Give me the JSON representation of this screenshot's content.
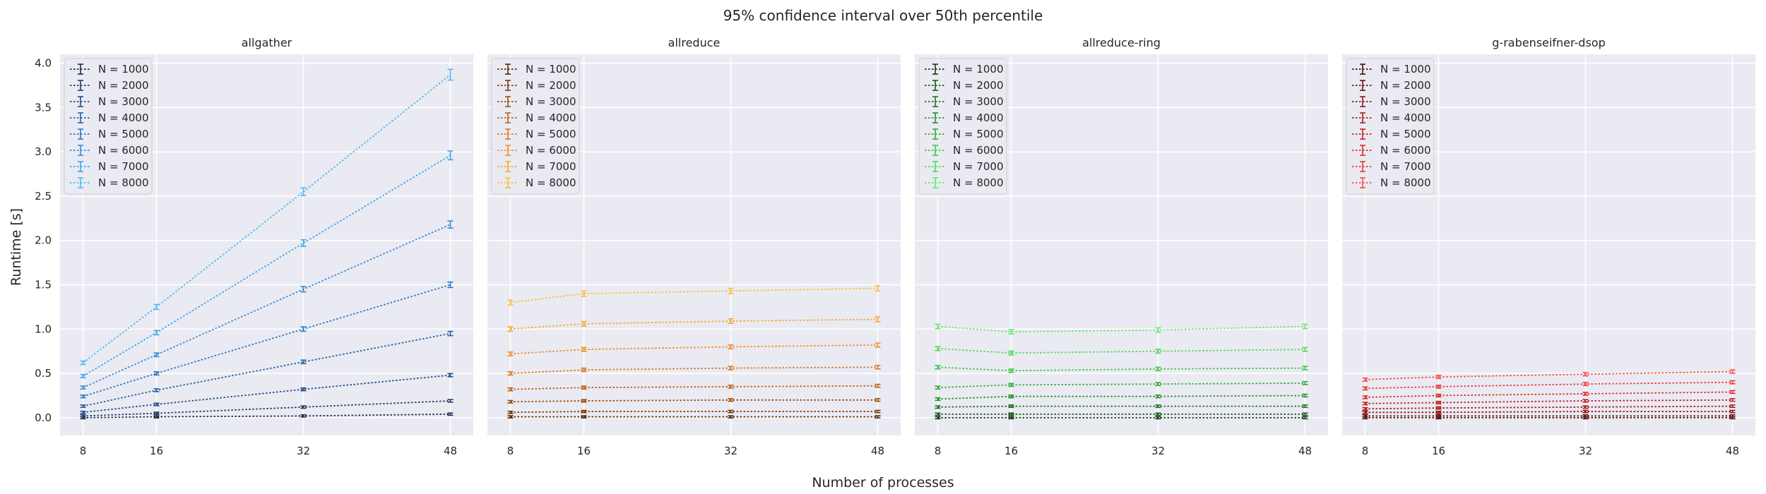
{
  "chart_data": {
    "type": "line",
    "suptitle": "95% confidence interval over 50th percentile",
    "xlabel": "Number of processes",
    "ylabel": "Runtime [s]",
    "x": [
      8,
      16,
      32,
      48
    ],
    "x_ticks": [
      "8",
      "16",
      "32",
      "48"
    ],
    "y_ticks": [
      "0.0",
      "0.5",
      "1.0",
      "1.5",
      "2.0",
      "2.5",
      "3.0",
      "3.5",
      "4.0"
    ],
    "ylim": [
      -0.2,
      4.1
    ],
    "grid": true,
    "shared_y": true,
    "legend_position": "top-left",
    "line_style": "dotted",
    "error_bars": true,
    "panels": [
      {
        "title": "allgather",
        "series": [
          {
            "name": "N = 1000",
            "values": [
              0.0,
              0.01,
              0.02,
              0.04
            ],
            "color": "#1c2b48"
          },
          {
            "name": "N = 2000",
            "values": [
              0.02,
              0.05,
              0.12,
              0.19
            ],
            "color": "#1f3c66"
          },
          {
            "name": "N = 3000",
            "values": [
              0.06,
              0.15,
              0.32,
              0.48
            ],
            "color": "#214f87"
          },
          {
            "name": "N = 4000",
            "values": [
              0.13,
              0.31,
              0.63,
              0.95
            ],
            "color": "#2463a6"
          },
          {
            "name": "N = 5000",
            "values": [
              0.24,
              0.5,
              1.0,
              1.5
            ],
            "color": "#2a78c4"
          },
          {
            "name": "N = 6000",
            "values": [
              0.34,
              0.71,
              1.45,
              2.18
            ],
            "color": "#328ed9"
          },
          {
            "name": "N = 7000",
            "values": [
              0.47,
              0.96,
              1.97,
              2.96
            ],
            "color": "#3ea5e8"
          },
          {
            "name": "N = 8000",
            "values": [
              0.62,
              1.25,
              2.55,
              3.87
            ],
            "color": "#4dbaf2"
          }
        ]
      },
      {
        "title": "allreduce",
        "series": [
          {
            "name": "N = 1000",
            "values": [
              0.01,
              0.01,
              0.01,
              0.01
            ],
            "color": "#5a2a0a"
          },
          {
            "name": "N = 2000",
            "values": [
              0.06,
              0.07,
              0.07,
              0.07
            ],
            "color": "#7a3c0d"
          },
          {
            "name": "N = 3000",
            "values": [
              0.18,
              0.19,
              0.2,
              0.2
            ],
            "color": "#9b4f11"
          },
          {
            "name": "N = 4000",
            "values": [
              0.32,
              0.34,
              0.35,
              0.36
            ],
            "color": "#bb6315"
          },
          {
            "name": "N = 5000",
            "values": [
              0.5,
              0.54,
              0.56,
              0.57
            ],
            "color": "#d97a1a"
          },
          {
            "name": "N = 6000",
            "values": [
              0.72,
              0.77,
              0.8,
              0.82
            ],
            "color": "#ef9023"
          },
          {
            "name": "N = 7000",
            "values": [
              1.0,
              1.06,
              1.09,
              1.11
            ],
            "color": "#f8a52d"
          },
          {
            "name": "N = 8000",
            "values": [
              1.3,
              1.4,
              1.43,
              1.46
            ],
            "color": "#fbbd3c"
          }
        ]
      },
      {
        "title": "allreduce-ring",
        "series": [
          {
            "name": "N = 1000",
            "values": [
              0.0,
              0.0,
              0.0,
              0.0
            ],
            "color": "#143d14"
          },
          {
            "name": "N = 2000",
            "values": [
              0.04,
              0.04,
              0.04,
              0.04
            ],
            "color": "#1a5a1c"
          },
          {
            "name": "N = 3000",
            "values": [
              0.12,
              0.13,
              0.13,
              0.13
            ],
            "color": "#1f7723"
          },
          {
            "name": "N = 4000",
            "values": [
              0.21,
              0.24,
              0.24,
              0.25
            ],
            "color": "#25942b"
          },
          {
            "name": "N = 5000",
            "values": [
              0.34,
              0.37,
              0.38,
              0.39
            ],
            "color": "#2eb036"
          },
          {
            "name": "N = 6000",
            "values": [
              0.57,
              0.53,
              0.55,
              0.56
            ],
            "color": "#3bc845"
          },
          {
            "name": "N = 7000",
            "values": [
              0.78,
              0.73,
              0.75,
              0.77
            ],
            "color": "#4ddb57"
          },
          {
            "name": "N = 8000",
            "values": [
              1.03,
              0.97,
              0.99,
              1.03
            ],
            "color": "#63ea6b"
          }
        ]
      },
      {
        "title": "g-rabenseifner-dsop",
        "series": [
          {
            "name": "N = 1000",
            "values": [
              0.0,
              0.0,
              0.0,
              0.0
            ],
            "color": "#4a0d0d"
          },
          {
            "name": "N = 2000",
            "values": [
              0.02,
              0.02,
              0.02,
              0.02
            ],
            "color": "#6b1212"
          },
          {
            "name": "N = 3000",
            "values": [
              0.06,
              0.06,
              0.07,
              0.07
            ],
            "color": "#8c1717"
          },
          {
            "name": "N = 4000",
            "values": [
              0.1,
              0.11,
              0.12,
              0.13
            ],
            "color": "#ad1c1c"
          },
          {
            "name": "N = 5000",
            "values": [
              0.16,
              0.17,
              0.19,
              0.2
            ],
            "color": "#c92222"
          },
          {
            "name": "N = 6000",
            "values": [
              0.23,
              0.25,
              0.27,
              0.29
            ],
            "color": "#e02b2b"
          },
          {
            "name": "N = 7000",
            "values": [
              0.33,
              0.35,
              0.38,
              0.4
            ],
            "color": "#ef3838"
          },
          {
            "name": "N = 8000",
            "values": [
              0.43,
              0.46,
              0.49,
              0.52
            ],
            "color": "#f84a4a"
          }
        ]
      }
    ]
  }
}
